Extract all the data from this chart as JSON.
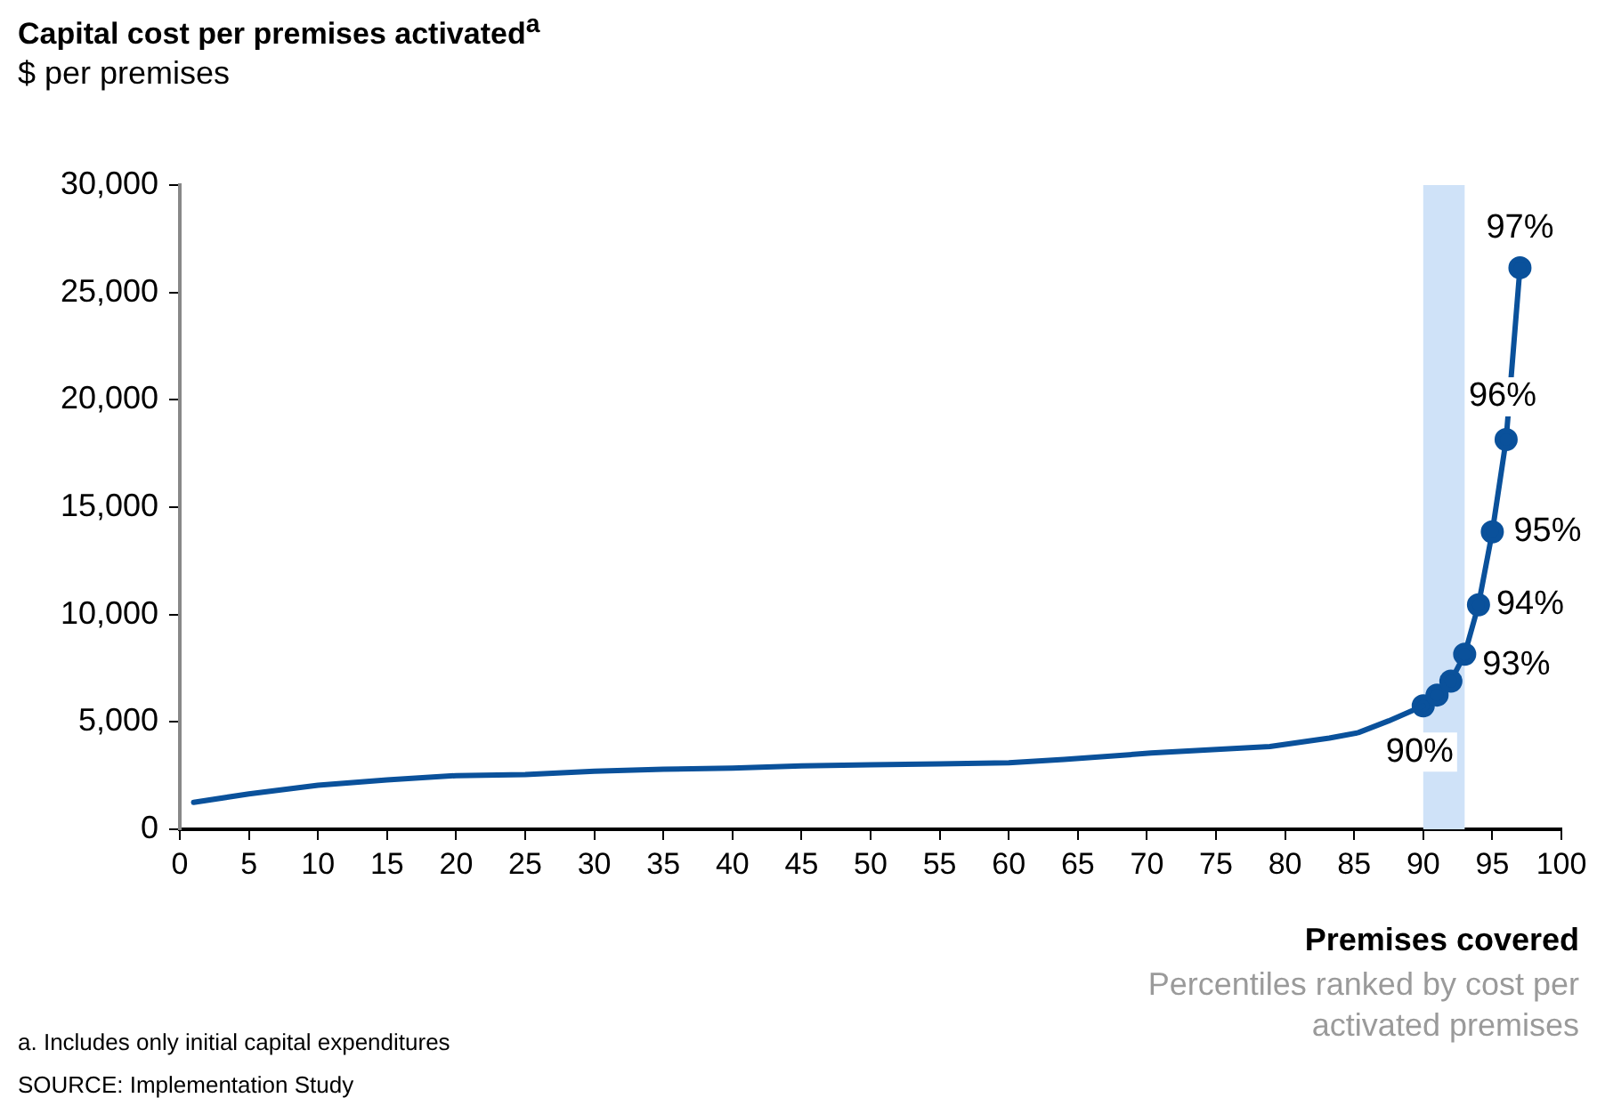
{
  "chart_data": {
    "type": "line",
    "title": "Capital cost per premises activated$^{a}$",
    "subtitle": "$ per premises",
    "xlabel": "Premises covered",
    "series": [
      {
        "color": "#0a519b",
        "marker": "none",
        "x": [
          1,
          5,
          10,
          15,
          20,
          25,
          30,
          35,
          40,
          45,
          50,
          55,
          60,
          64,
          70.3,
          78.9,
          83.2,
          85.3,
          87.5,
          90
        ],
        "values": [
          1250,
          1650,
          2050,
          2300,
          2500,
          2550,
          2700,
          2800,
          2850,
          2950,
          3000,
          3050,
          3100,
          3250,
          3550,
          3850,
          4250,
          4500,
          5050,
          5750
        ]
      },
      {
        "color": "#0a519b",
        "marker": "circle",
        "x": [
          90,
          91,
          92,
          93,
          94,
          95,
          96,
          97
        ],
        "values": [
          5750,
          6250,
          6900,
          8150,
          10450,
          13850,
          18150,
          26150
        ]
      }
    ],
    "xlim": [
      0,
      100
    ],
    "xticks": [
      0,
      5,
      10,
      15,
      20,
      25,
      30,
      35,
      40,
      45,
      50,
      55,
      60,
      65,
      70,
      75,
      80,
      85,
      90,
      95,
      100
    ],
    "ylim": [
      0,
      30000
    ],
    "yticks": [
      {
        "value": 0,
        "label": "0"
      },
      {
        "value": 5000,
        "label": "5,000"
      },
      {
        "value": 10000,
        "label": "10,000"
      },
      {
        "value": 15000,
        "label": "15,000"
      },
      {
        "value": 20000,
        "label": "20,000"
      },
      {
        "value": 25000,
        "label": "25,000"
      },
      {
        "value": 30000,
        "label": "30,000"
      }
    ],
    "grid": false,
    "legend": false,
    "line_style": "solid",
    "bands": [
      {
        "axis": "x",
        "from": 90,
        "to": 93,
        "color": "#cfe2f8"
      }
    ],
    "annotations": [
      {
        "text": "90%",
        "x": 90,
        "y": 5750
      },
      {
        "text": "93%",
        "x": 93,
        "y": 8150
      },
      {
        "text": "94%",
        "x": 94,
        "y": 10450
      },
      {
        "text": "95%",
        "x": 95,
        "y": 13850
      },
      {
        "text": "96%",
        "x": 96,
        "y": 18150
      },
      {
        "text": "97%",
        "x": 97,
        "y": 26150
      },
      "Percentiles ranked by cost per activated premises",
      "a. Includes only initial capital expenditures",
      "SOURCE: Implementation Study"
    ]
  }
}
